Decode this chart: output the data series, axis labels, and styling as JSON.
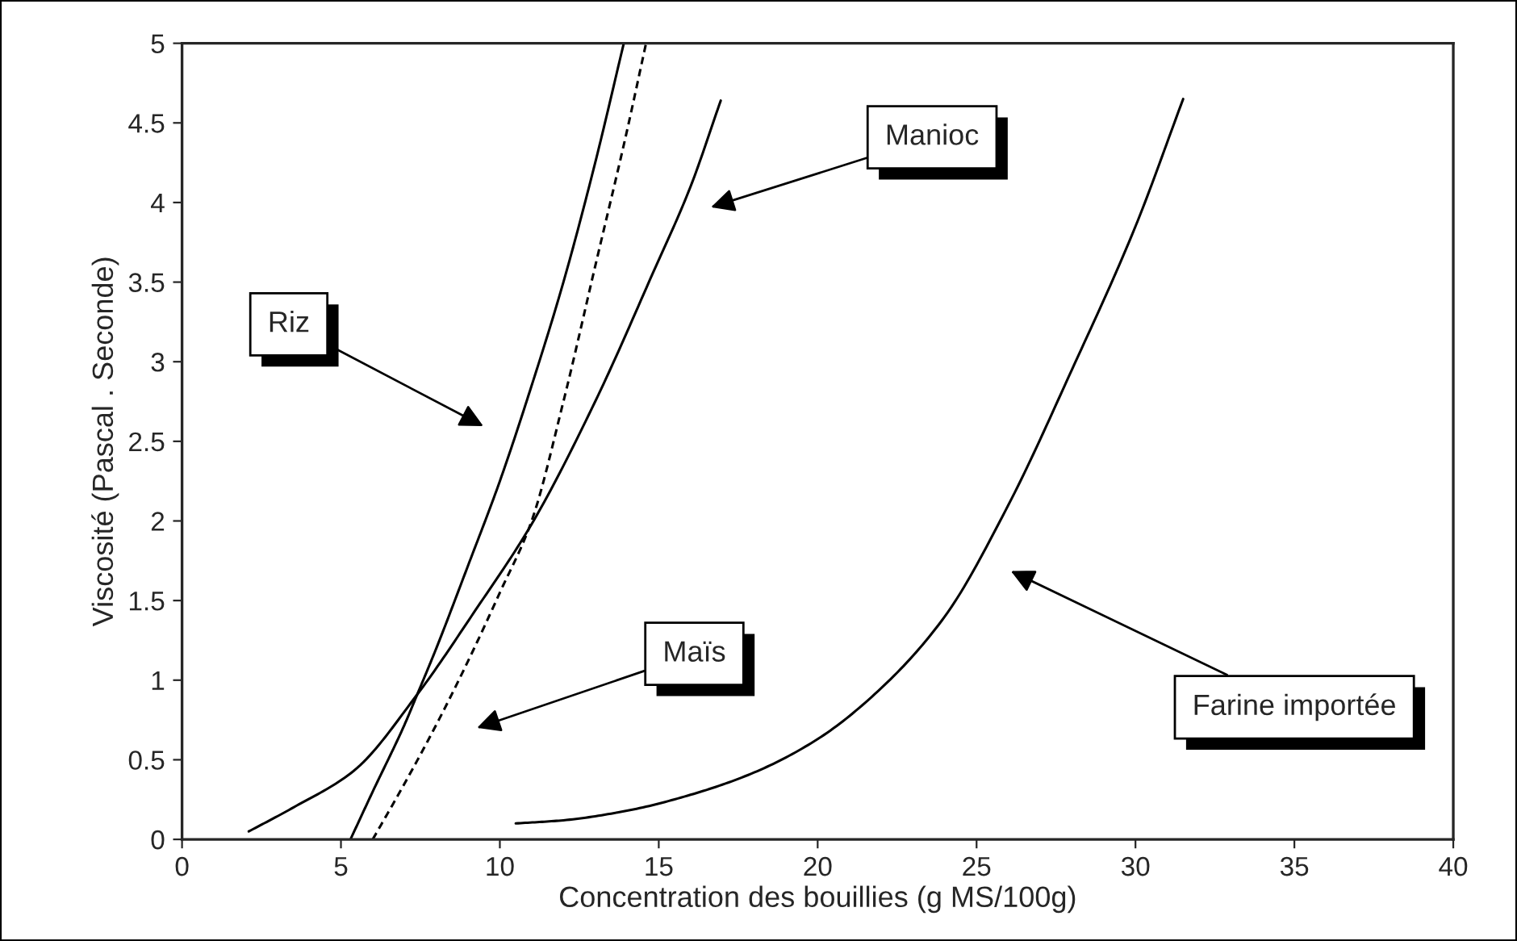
{
  "chart_data": {
    "type": "line",
    "xlabel": "Concentration des bouillies (g MS/100g)",
    "ylabel": "Viscosité (Pascal . Seconde)",
    "xlim": [
      0,
      40
    ],
    "xticks": [
      0,
      5,
      10,
      15,
      20,
      25,
      30,
      35,
      40
    ],
    "ylim": [
      0,
      5
    ],
    "yticks": [
      0,
      0.5,
      1,
      1.5,
      2,
      2.5,
      3,
      3.5,
      4,
      4.5,
      5
    ],
    "grid": false,
    "marker": "none",
    "series": [
      {
        "color": "#000000",
        "line_style": "solid",
        "x": [
          5.3,
          6,
          7,
          7.4,
          8,
          9,
          10,
          11,
          12,
          13,
          13.9
        ],
        "values": [
          0,
          0.3,
          0.72,
          0.91,
          1.2,
          1.72,
          2.25,
          2.85,
          3.5,
          4.25,
          5.0
        ]
      },
      {
        "color": "#000000",
        "line_style": "solid",
        "x": [
          2.1,
          3.5,
          5.4,
          7.4,
          9.2,
          11.0,
          13.0,
          14.8,
          16,
          16.95
        ],
        "values": [
          0.05,
          0.2,
          0.43,
          0.91,
          1.43,
          1.98,
          2.75,
          3.55,
          4.1,
          4.64
        ]
      },
      {
        "color": "#000000",
        "line_style": "dashed",
        "x": [
          6.0,
          7,
          8,
          9,
          10,
          11,
          12,
          13,
          14,
          14.6
        ],
        "values": [
          0,
          0.35,
          0.72,
          1.12,
          1.55,
          2.0,
          2.75,
          3.6,
          4.45,
          5.0
        ]
      },
      {
        "color": "#000000",
        "line_style": "solid",
        "x": [
          10.5,
          12,
          14,
          16,
          18,
          20,
          22,
          24,
          26,
          28,
          30,
          31.5
        ],
        "values": [
          0.1,
          0.12,
          0.18,
          0.28,
          0.42,
          0.63,
          0.95,
          1.4,
          2.1,
          2.95,
          3.85,
          4.65
        ]
      }
    ],
    "annotations": [
      "Riz",
      "Manioc",
      "Maïs",
      "Farine importée"
    ]
  }
}
